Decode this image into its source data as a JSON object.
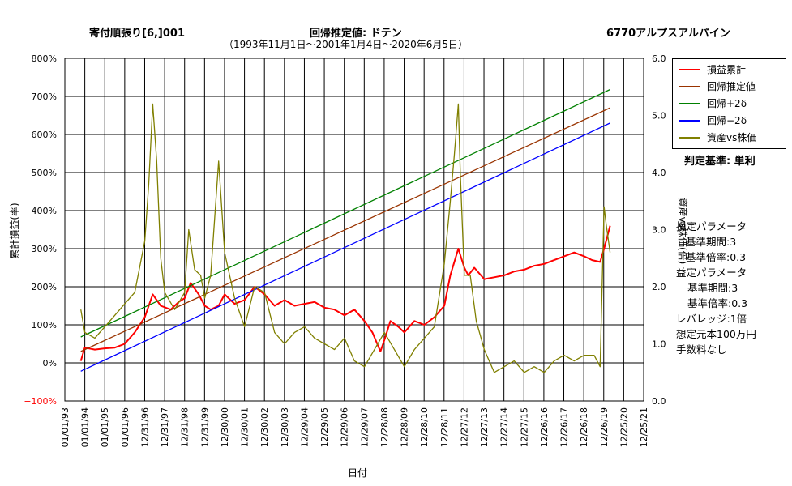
{
  "header": {
    "left": "寄付順張り[6,]001",
    "center": "回帰推定値: ドテン",
    "range": "（1993年11月1日～2001年1月4日～2020年6月5日）",
    "right": "6770アルプスアルパイン"
  },
  "legend": {
    "items": [
      {
        "label": "損益累計",
        "color": "#ff0000"
      },
      {
        "label": "回帰推定値",
        "color": "#993300"
      },
      {
        "label": "回帰+2δ",
        "color": "#008000"
      },
      {
        "label": "回帰−2δ",
        "color": "#0000ff"
      },
      {
        "label": "資産vs株価",
        "color": "#808000"
      }
    ]
  },
  "judge": "判定基準: 単利",
  "params": {
    "p1": "損定パラメータ",
    "p1a": "基準期間:3",
    "p1b": "基準倍率:0.3",
    "p2": "益定パラメータ",
    "p2a": "基準期間:3",
    "p2b": "基準倍率:0.3",
    "lev": "レバレッジ:1倍",
    "cap": "想定元本100万円",
    "fee": "手数料なし"
  },
  "chart_data": {
    "type": "line",
    "xlabel": "日付",
    "ylabel": "累計損益(率)",
    "y2label": "資産vs株価(倍)",
    "x_ticks": [
      "01/01/93",
      "01/01/94",
      "01/01/95",
      "01/01/96",
      "12/31/96",
      "12/31/97",
      "12/31/98",
      "12/31/99",
      "12/30/00",
      "12/30/01",
      "12/30/02",
      "12/30/03",
      "12/29/04",
      "12/29/05",
      "12/29/06",
      "12/29/07",
      "12/28/08",
      "12/28/09",
      "12/28/10",
      "12/28/11",
      "12/27/12",
      "12/27/13",
      "12/27/14",
      "12/27/15",
      "12/26/16",
      "12/26/17",
      "12/26/18",
      "12/26/19",
      "12/25/20",
      "12/25/21"
    ],
    "ylim": [
      -100,
      800
    ],
    "y_ticks": [
      "−100%",
      "0%",
      "100%",
      "200%",
      "300%",
      "400%",
      "500%",
      "600%",
      "700%",
      "800%"
    ],
    "y2lim": [
      0,
      6
    ],
    "y2_ticks": [
      "0.0",
      "1.0",
      "2.0",
      "3.0",
      "4.0",
      "5.0",
      "6.0"
    ],
    "grid": true,
    "legend_position": "top-right",
    "series": [
      {
        "name": "損益累計",
        "color": "#ff0000",
        "axis": "left",
        "x": [
          1993.8,
          1994.0,
          1994.5,
          1995.0,
          1995.5,
          1996.0,
          1996.5,
          1997.0,
          1997.4,
          1997.8,
          1998.3,
          1998.7,
          1999.0,
          1999.3,
          1999.7,
          2000.0,
          2000.3,
          2000.7,
          2001.0,
          2001.5,
          2002.0,
          2002.5,
          2003.0,
          2003.5,
          2004.0,
          2004.5,
          2005.0,
          2005.5,
          2006.0,
          2006.5,
          2007.0,
          2007.5,
          2008.0,
          2008.4,
          2008.8,
          2009.0,
          2009.3,
          2009.7,
          2010.0,
          2010.5,
          2011.0,
          2011.5,
          2012.0,
          2012.3,
          2012.7,
          2013.0,
          2013.2,
          2013.5,
          2014.0,
          2014.5,
          2015.0,
          2015.5,
          2016.0,
          2016.5,
          2017.0,
          2017.5,
          2018.0,
          2018.5,
          2019.0,
          2019.4,
          2019.8,
          2020.0,
          2020.3
        ],
        "y": [
          5,
          40,
          35,
          38,
          40,
          50,
          80,
          120,
          180,
          150,
          140,
          160,
          170,
          210,
          180,
          150,
          140,
          150,
          180,
          155,
          165,
          200,
          180,
          150,
          165,
          150,
          155,
          160,
          145,
          140,
          125,
          140,
          110,
          80,
          30,
          60,
          110,
          95,
          80,
          110,
          100,
          120,
          150,
          230,
          300,
          250,
          230,
          250,
          220,
          225,
          230,
          240,
          245,
          255,
          260,
          270,
          280,
          290,
          280,
          270,
          265,
          300,
          360
        ]
      },
      {
        "name": "回帰推定値",
        "color": "#993300",
        "axis": "left",
        "x": [
          1993.8,
          2020.3
        ],
        "y": [
          30,
          670
        ]
      },
      {
        "name": "回帰+2δ",
        "color": "#008000",
        "axis": "left",
        "x": [
          1993.8,
          2020.3
        ],
        "y": [
          68,
          718
        ]
      },
      {
        "name": "回帰−2δ",
        "color": "#0000ff",
        "axis": "left",
        "x": [
          1993.8,
          2020.3
        ],
        "y": [
          -22,
          630
        ]
      },
      {
        "name": "資産vs株価",
        "color": "#808000",
        "axis": "right",
        "x": [
          1993.8,
          1994.0,
          1994.5,
          1995.0,
          1995.5,
          1996.0,
          1996.5,
          1997.0,
          1997.2,
          1997.4,
          1997.6,
          1997.8,
          1998.0,
          1998.5,
          1999.0,
          1999.2,
          1999.5,
          1999.8,
          2000.0,
          2000.3,
          2000.5,
          2000.7,
          2001.0,
          2001.5,
          2002.0,
          2002.5,
          2003.0,
          2003.5,
          2004.0,
          2004.5,
          2005.0,
          2005.5,
          2006.0,
          2006.5,
          2007.0,
          2007.5,
          2008.0,
          2008.5,
          2009.0,
          2009.5,
          2010.0,
          2010.5,
          2011.0,
          2011.5,
          2012.0,
          2012.3,
          2012.5,
          2012.7,
          2012.8,
          2013.0,
          2013.3,
          2013.6,
          2014.0,
          2014.5,
          2015.0,
          2015.5,
          2016.0,
          2016.5,
          2017.0,
          2017.5,
          2018.0,
          2018.5,
          2019.0,
          2019.5,
          2019.8,
          2020.0,
          2020.1,
          2020.3
        ],
        "y": [
          1.6,
          1.2,
          1.1,
          1.3,
          1.5,
          1.7,
          1.9,
          2.8,
          3.8,
          5.2,
          4.2,
          2.5,
          1.9,
          1.6,
          1.9,
          3.0,
          2.3,
          2.2,
          1.8,
          2.2,
          3.2,
          4.2,
          2.6,
          1.8,
          1.3,
          2.0,
          1.9,
          1.2,
          1.0,
          1.2,
          1.3,
          1.1,
          1.0,
          0.9,
          1.1,
          0.7,
          0.6,
          0.9,
          1.2,
          0.9,
          0.6,
          0.9,
          1.1,
          1.3,
          2.4,
          3.5,
          4.3,
          5.2,
          4.0,
          2.2,
          2.2,
          1.4,
          0.9,
          0.5,
          0.6,
          0.7,
          0.5,
          0.6,
          0.5,
          0.7,
          0.8,
          0.7,
          0.8,
          0.8,
          0.6,
          3.4,
          3.1,
          2.6
        ]
      }
    ]
  }
}
